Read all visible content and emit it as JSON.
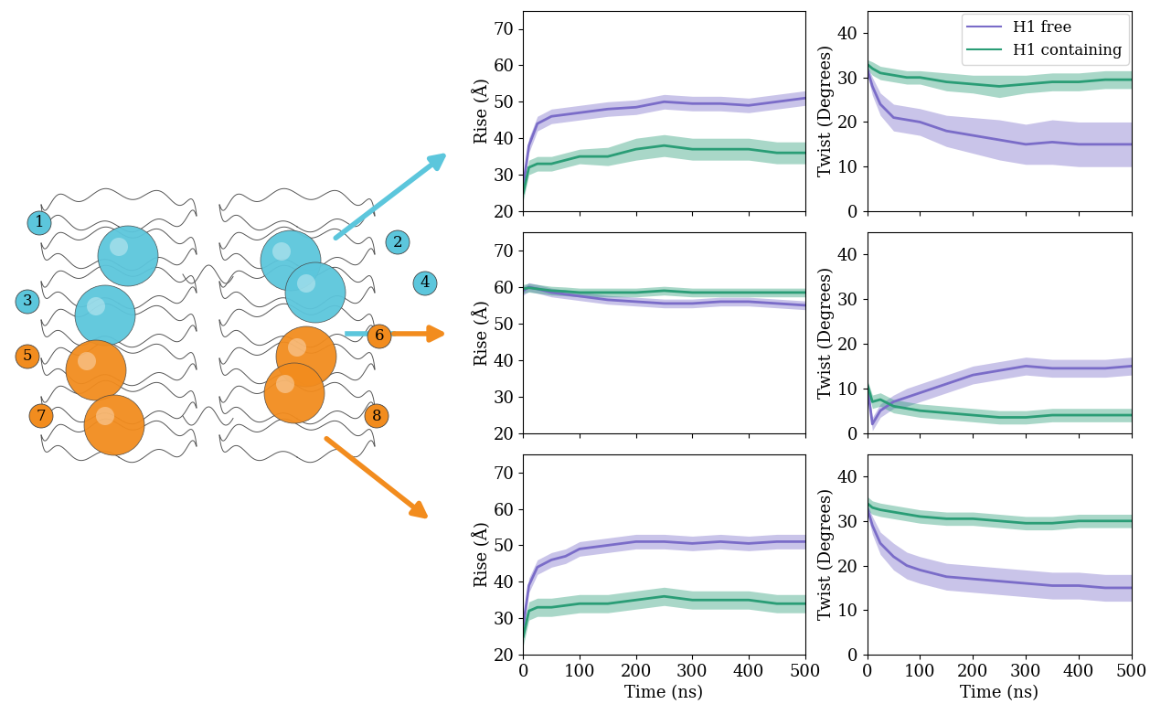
{
  "diagram": {
    "nodes": [
      {
        "label": "1",
        "color": "#5cc6dc"
      },
      {
        "label": "2",
        "color": "#5cc6dc"
      },
      {
        "label": "3",
        "color": "#5cc6dc"
      },
      {
        "label": "4",
        "color": "#5cc6dc"
      },
      {
        "label": "5",
        "color": "#f28c1e"
      },
      {
        "label": "6",
        "color": "#f28c1e"
      },
      {
        "label": "7",
        "color": "#f28c1e"
      },
      {
        "label": "8",
        "color": "#f28c1e"
      }
    ]
  },
  "chart_data": [
    {
      "type": "line",
      "y_label": "Rise (Å)",
      "tick_labels": "y",
      "xlim": [
        0,
        500
      ],
      "xticks": [
        0,
        100,
        200,
        300,
        400,
        500
      ],
      "ylim": [
        20,
        75
      ],
      "yticks": [
        20,
        30,
        40,
        50,
        60,
        70
      ],
      "x": [
        0,
        10,
        25,
        50,
        75,
        100,
        150,
        200,
        250,
        300,
        350,
        400,
        450,
        500
      ],
      "series": [
        {
          "color": "#7a6cc8",
          "values": [
            27,
            38,
            44,
            46,
            46.5,
            47,
            48,
            48.5,
            50,
            49.5,
            49.5,
            49,
            50,
            51
          ],
          "errors": [
            1.5,
            2,
            2,
            2,
            2,
            2,
            2,
            2,
            2,
            2,
            2,
            2,
            2,
            2
          ]
        },
        {
          "color": "#2a9d76",
          "values": [
            25,
            32,
            33,
            33,
            34,
            35,
            35,
            37,
            38,
            37,
            37,
            37,
            36,
            36
          ],
          "errors": [
            2,
            2,
            2,
            2,
            2,
            2,
            2.5,
            3,
            3,
            3,
            3,
            3,
            3,
            3
          ]
        }
      ]
    },
    {
      "type": "line",
      "y_label": "Twist (Degrees)",
      "tick_labels": "y",
      "legend": "upper right",
      "xlim": [
        0,
        500
      ],
      "xticks": [
        0,
        100,
        200,
        300,
        400,
        500
      ],
      "ylim": [
        0,
        45
      ],
      "yticks": [
        0,
        10,
        20,
        30,
        40
      ],
      "x": [
        0,
        10,
        25,
        50,
        75,
        100,
        150,
        200,
        250,
        300,
        350,
        400,
        450,
        500
      ],
      "series": [
        {
          "name": "H1 free",
          "color": "#7a6cc8",
          "values": [
            32,
            28,
            24,
            21,
            20.5,
            20,
            18,
            17,
            16,
            15,
            15.5,
            15,
            15,
            15
          ],
          "errors": [
            1,
            2,
            2.5,
            3,
            3,
            3,
            3.5,
            4,
            4.5,
            4.5,
            5,
            5,
            5,
            5
          ]
        },
        {
          "name": "H1 containing",
          "color": "#2a9d76",
          "values": [
            33,
            32,
            31,
            30.5,
            30,
            30,
            29,
            28.5,
            28,
            28.5,
            29,
            29,
            29.5,
            29.5
          ],
          "errors": [
            1,
            1.5,
            1.5,
            1.5,
            1.5,
            1.5,
            2,
            2,
            2.5,
            2,
            2,
            2,
            2,
            2
          ]
        }
      ]
    },
    {
      "type": "line",
      "y_label": "Rise (Å)",
      "tick_labels": "y",
      "xlim": [
        0,
        500
      ],
      "xticks": [
        0,
        100,
        200,
        300,
        400,
        500
      ],
      "ylim": [
        20,
        75
      ],
      "yticks": [
        20,
        30,
        40,
        50,
        60,
        70
      ],
      "x": [
        0,
        10,
        25,
        50,
        75,
        100,
        150,
        200,
        250,
        300,
        350,
        400,
        450,
        500
      ],
      "series": [
        {
          "color": "#7a6cc8",
          "values": [
            59,
            60,
            59.5,
            58.5,
            58,
            57.5,
            56.5,
            56,
            55.5,
            55.5,
            56,
            56,
            55.5,
            55
          ],
          "errors": [
            1.2,
            1.2,
            1.2,
            1.2,
            1.2,
            1.2,
            1.2,
            1.2,
            1.2,
            1.2,
            1.2,
            1.2,
            1.2,
            1.2
          ]
        },
        {
          "color": "#2a9d76",
          "values": [
            59.5,
            59.8,
            59.5,
            59,
            58.8,
            58.5,
            58.5,
            58.5,
            59,
            58.5,
            58.5,
            58.5,
            58.5,
            58.5
          ],
          "errors": [
            1.2,
            1.2,
            1.2,
            1.2,
            1.2,
            1.2,
            1.2,
            1.2,
            1.2,
            1.2,
            1.2,
            1.2,
            1.2,
            1.2
          ]
        }
      ]
    },
    {
      "type": "line",
      "y_label": "Twist (Degrees)",
      "tick_labels": "y",
      "xlim": [
        0,
        500
      ],
      "xticks": [
        0,
        100,
        200,
        300,
        400,
        500
      ],
      "ylim": [
        0,
        45
      ],
      "yticks": [
        0,
        10,
        20,
        30,
        40
      ],
      "x": [
        0,
        10,
        25,
        50,
        75,
        100,
        150,
        200,
        250,
        300,
        350,
        400,
        450,
        500
      ],
      "series": [
        {
          "color": "#7a6cc8",
          "values": [
            11,
            2,
            5,
            7,
            8,
            9,
            11,
            13,
            14,
            15,
            14.5,
            14.5,
            14.5,
            15
          ],
          "errors": [
            1,
            1.5,
            1.5,
            1.5,
            2,
            2,
            2,
            2,
            2,
            2,
            2,
            2,
            2,
            2
          ]
        },
        {
          "color": "#2a9d76",
          "values": [
            11,
            7,
            7.5,
            6,
            5.5,
            5,
            4.5,
            4,
            3.5,
            3.5,
            4,
            4,
            4,
            4
          ],
          "errors": [
            1,
            1.5,
            1.5,
            1.5,
            1.5,
            1.5,
            1.5,
            1.5,
            1.5,
            1.5,
            1.5,
            1.5,
            1.5,
            1.5
          ]
        }
      ]
    },
    {
      "type": "line",
      "x_label": "Time (ns)",
      "y_label": "Rise (Å)",
      "xlim": [
        0,
        500
      ],
      "xticks": [
        0,
        100,
        200,
        300,
        400,
        500
      ],
      "ylim": [
        20,
        75
      ],
      "yticks": [
        20,
        30,
        40,
        50,
        60,
        70
      ],
      "x": [
        0,
        10,
        25,
        50,
        75,
        100,
        150,
        200,
        250,
        300,
        350,
        400,
        450,
        500
      ],
      "series": [
        {
          "color": "#7a6cc8",
          "values": [
            28,
            39,
            44,
            46,
            47,
            49,
            50,
            51,
            51,
            50.5,
            51,
            50.5,
            51,
            51
          ],
          "errors": [
            2,
            2,
            2,
            2,
            2,
            2,
            2,
            2,
            2,
            2,
            2,
            2,
            2,
            2
          ]
        },
        {
          "color": "#2a9d76",
          "values": [
            25,
            32,
            33,
            33,
            33.5,
            34,
            34,
            35,
            36,
            35,
            35,
            35,
            34,
            34
          ],
          "errors": [
            2.5,
            2.5,
            2.5,
            2.5,
            2.5,
            2.5,
            2.5,
            2.5,
            2.5,
            2.5,
            2.5,
            2.5,
            2.5,
            2.5
          ]
        }
      ]
    },
    {
      "type": "line",
      "x_label": "Time (ns)",
      "y_label": "Twist (Degrees)",
      "xlim": [
        0,
        500
      ],
      "xticks": [
        0,
        100,
        200,
        300,
        400,
        500
      ],
      "ylim": [
        0,
        45
      ],
      "yticks": [
        0,
        10,
        20,
        30,
        40
      ],
      "x": [
        0,
        10,
        25,
        50,
        75,
        100,
        150,
        200,
        250,
        300,
        350,
        400,
        450,
        500
      ],
      "series": [
        {
          "color": "#7a6cc8",
          "values": [
            33,
            29,
            25,
            22,
            20,
            19,
            17.5,
            17,
            16.5,
            16,
            15.5,
            15.5,
            15,
            15
          ],
          "errors": [
            1,
            2,
            2.5,
            3,
            3,
            3,
            3,
            3,
            3,
            3,
            3,
            3,
            3,
            3
          ]
        },
        {
          "color": "#2a9d76",
          "values": [
            34,
            33,
            32.5,
            32,
            31.5,
            31,
            30.5,
            30.5,
            30,
            29.5,
            29.5,
            30,
            30,
            30
          ],
          "errors": [
            1.5,
            1.5,
            1.5,
            1.5,
            1.5,
            1.5,
            1.5,
            1.5,
            1.5,
            1.5,
            1.5,
            1.5,
            1.5,
            1.5
          ]
        }
      ]
    }
  ]
}
